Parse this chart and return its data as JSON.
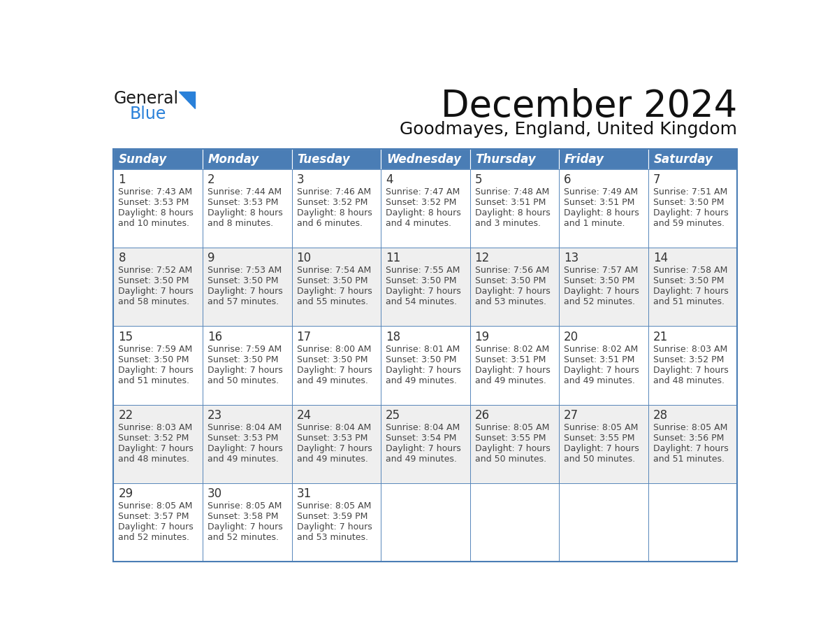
{
  "title": "December 2024",
  "subtitle": "Goodmayes, England, United Kingdom",
  "header_color": "#4A7DB5",
  "header_text_color": "#FFFFFF",
  "day_names": [
    "Sunday",
    "Monday",
    "Tuesday",
    "Wednesday",
    "Thursday",
    "Friday",
    "Saturday"
  ],
  "weeks": [
    [
      {
        "day": 1,
        "sunrise": "7:43 AM",
        "sunset": "3:53 PM",
        "daylight_line1": "Daylight: 8 hours",
        "daylight_line2": "and 10 minutes."
      },
      {
        "day": 2,
        "sunrise": "7:44 AM",
        "sunset": "3:53 PM",
        "daylight_line1": "Daylight: 8 hours",
        "daylight_line2": "and 8 minutes."
      },
      {
        "day": 3,
        "sunrise": "7:46 AM",
        "sunset": "3:52 PM",
        "daylight_line1": "Daylight: 8 hours",
        "daylight_line2": "and 6 minutes."
      },
      {
        "day": 4,
        "sunrise": "7:47 AM",
        "sunset": "3:52 PM",
        "daylight_line1": "Daylight: 8 hours",
        "daylight_line2": "and 4 minutes."
      },
      {
        "day": 5,
        "sunrise": "7:48 AM",
        "sunset": "3:51 PM",
        "daylight_line1": "Daylight: 8 hours",
        "daylight_line2": "and 3 minutes."
      },
      {
        "day": 6,
        "sunrise": "7:49 AM",
        "sunset": "3:51 PM",
        "daylight_line1": "Daylight: 8 hours",
        "daylight_line2": "and 1 minute."
      },
      {
        "day": 7,
        "sunrise": "7:51 AM",
        "sunset": "3:50 PM",
        "daylight_line1": "Daylight: 7 hours",
        "daylight_line2": "and 59 minutes."
      }
    ],
    [
      {
        "day": 8,
        "sunrise": "7:52 AM",
        "sunset": "3:50 PM",
        "daylight_line1": "Daylight: 7 hours",
        "daylight_line2": "and 58 minutes."
      },
      {
        "day": 9,
        "sunrise": "7:53 AM",
        "sunset": "3:50 PM",
        "daylight_line1": "Daylight: 7 hours",
        "daylight_line2": "and 57 minutes."
      },
      {
        "day": 10,
        "sunrise": "7:54 AM",
        "sunset": "3:50 PM",
        "daylight_line1": "Daylight: 7 hours",
        "daylight_line2": "and 55 minutes."
      },
      {
        "day": 11,
        "sunrise": "7:55 AM",
        "sunset": "3:50 PM",
        "daylight_line1": "Daylight: 7 hours",
        "daylight_line2": "and 54 minutes."
      },
      {
        "day": 12,
        "sunrise": "7:56 AM",
        "sunset": "3:50 PM",
        "daylight_line1": "Daylight: 7 hours",
        "daylight_line2": "and 53 minutes."
      },
      {
        "day": 13,
        "sunrise": "7:57 AM",
        "sunset": "3:50 PM",
        "daylight_line1": "Daylight: 7 hours",
        "daylight_line2": "and 52 minutes."
      },
      {
        "day": 14,
        "sunrise": "7:58 AM",
        "sunset": "3:50 PM",
        "daylight_line1": "Daylight: 7 hours",
        "daylight_line2": "and 51 minutes."
      }
    ],
    [
      {
        "day": 15,
        "sunrise": "7:59 AM",
        "sunset": "3:50 PM",
        "daylight_line1": "Daylight: 7 hours",
        "daylight_line2": "and 51 minutes."
      },
      {
        "day": 16,
        "sunrise": "7:59 AM",
        "sunset": "3:50 PM",
        "daylight_line1": "Daylight: 7 hours",
        "daylight_line2": "and 50 minutes."
      },
      {
        "day": 17,
        "sunrise": "8:00 AM",
        "sunset": "3:50 PM",
        "daylight_line1": "Daylight: 7 hours",
        "daylight_line2": "and 49 minutes."
      },
      {
        "day": 18,
        "sunrise": "8:01 AM",
        "sunset": "3:50 PM",
        "daylight_line1": "Daylight: 7 hours",
        "daylight_line2": "and 49 minutes."
      },
      {
        "day": 19,
        "sunrise": "8:02 AM",
        "sunset": "3:51 PM",
        "daylight_line1": "Daylight: 7 hours",
        "daylight_line2": "and 49 minutes."
      },
      {
        "day": 20,
        "sunrise": "8:02 AM",
        "sunset": "3:51 PM",
        "daylight_line1": "Daylight: 7 hours",
        "daylight_line2": "and 49 minutes."
      },
      {
        "day": 21,
        "sunrise": "8:03 AM",
        "sunset": "3:52 PM",
        "daylight_line1": "Daylight: 7 hours",
        "daylight_line2": "and 48 minutes."
      }
    ],
    [
      {
        "day": 22,
        "sunrise": "8:03 AM",
        "sunset": "3:52 PM",
        "daylight_line1": "Daylight: 7 hours",
        "daylight_line2": "and 48 minutes."
      },
      {
        "day": 23,
        "sunrise": "8:04 AM",
        "sunset": "3:53 PM",
        "daylight_line1": "Daylight: 7 hours",
        "daylight_line2": "and 49 minutes."
      },
      {
        "day": 24,
        "sunrise": "8:04 AM",
        "sunset": "3:53 PM",
        "daylight_line1": "Daylight: 7 hours",
        "daylight_line2": "and 49 minutes."
      },
      {
        "day": 25,
        "sunrise": "8:04 AM",
        "sunset": "3:54 PM",
        "daylight_line1": "Daylight: 7 hours",
        "daylight_line2": "and 49 minutes."
      },
      {
        "day": 26,
        "sunrise": "8:05 AM",
        "sunset": "3:55 PM",
        "daylight_line1": "Daylight: 7 hours",
        "daylight_line2": "and 50 minutes."
      },
      {
        "day": 27,
        "sunrise": "8:05 AM",
        "sunset": "3:55 PM",
        "daylight_line1": "Daylight: 7 hours",
        "daylight_line2": "and 50 minutes."
      },
      {
        "day": 28,
        "sunrise": "8:05 AM",
        "sunset": "3:56 PM",
        "daylight_line1": "Daylight: 7 hours",
        "daylight_line2": "and 51 minutes."
      }
    ],
    [
      {
        "day": 29,
        "sunrise": "8:05 AM",
        "sunset": "3:57 PM",
        "daylight_line1": "Daylight: 7 hours",
        "daylight_line2": "and 52 minutes."
      },
      {
        "day": 30,
        "sunrise": "8:05 AM",
        "sunset": "3:58 PM",
        "daylight_line1": "Daylight: 7 hours",
        "daylight_line2": "and 52 minutes."
      },
      {
        "day": 31,
        "sunrise": "8:05 AM",
        "sunset": "3:59 PM",
        "daylight_line1": "Daylight: 7 hours",
        "daylight_line2": "and 53 minutes."
      },
      null,
      null,
      null,
      null
    ]
  ],
  "cell_bg_even": "#FFFFFF",
  "cell_bg_odd": "#EFEFEF",
  "border_color": "#4A7DB5",
  "text_color": "#444444",
  "day_num_color": "#333333",
  "logo_general_color": "#1a1a1a",
  "logo_blue_color": "#2980D9",
  "logo_triangle_color": "#2980D9",
  "title_fontsize": 38,
  "subtitle_fontsize": 18,
  "header_fontsize": 12,
  "daynum_fontsize": 12,
  "cell_fontsize": 9
}
